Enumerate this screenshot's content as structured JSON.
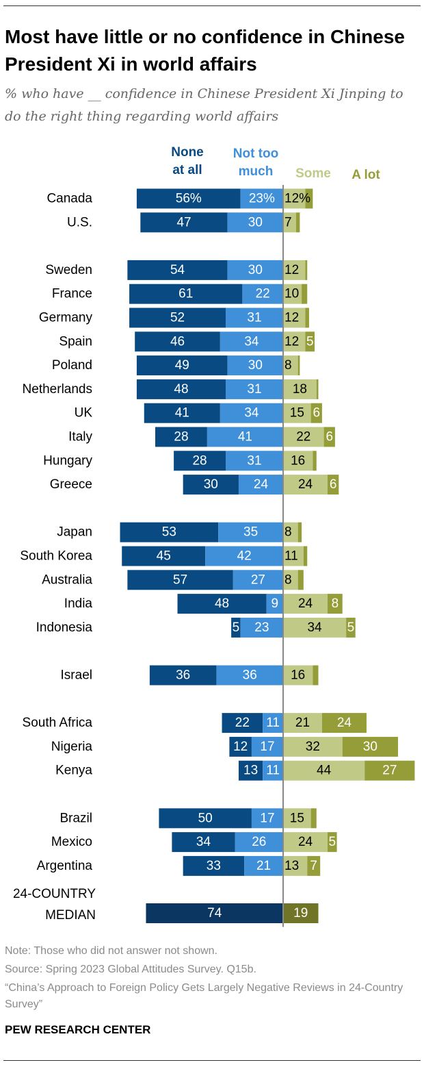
{
  "title": "Most have little or no confidence in Chinese President Xi in world affairs",
  "subtitle": "% who have __ confidence in Chinese President Xi Jinping to do the right thing regarding world affairs",
  "colors": {
    "none": "#0a4a82",
    "not_too_much": "#3f8fd9",
    "some": "#c1c987",
    "a_lot": "#949d37",
    "median_none": "#0b3661",
    "median_a_lot": "#6f7427",
    "axis": "#888888"
  },
  "chart_data": {
    "type": "bar",
    "orientation": "horizontal-diverging",
    "series_names": [
      "None at all",
      "Not too much",
      "Some",
      "A lot"
    ],
    "groups": [
      [
        {
          "country": "Canada",
          "none": "56%",
          "not_too_much": "23%",
          "some": "12%",
          "a_lot": 4,
          "a_lot_label": ""
        },
        {
          "country": "U.S.",
          "none": 47,
          "not_too_much": 30,
          "some": 7,
          "a_lot": 2,
          "a_lot_label": ""
        }
      ],
      [
        {
          "country": "Sweden",
          "none": 54,
          "not_too_much": 30,
          "some": 12,
          "a_lot": 1,
          "a_lot_label": ""
        },
        {
          "country": "France",
          "none": 61,
          "not_too_much": 22,
          "some": 10,
          "a_lot": 3,
          "a_lot_label": ""
        },
        {
          "country": "Germany",
          "none": 52,
          "not_too_much": 31,
          "some": 12,
          "a_lot": 2,
          "a_lot_label": ""
        },
        {
          "country": "Spain",
          "none": 46,
          "not_too_much": 34,
          "some": 12,
          "a_lot": 5,
          "a_lot_label": "5"
        },
        {
          "country": "Poland",
          "none": 49,
          "not_too_much": 30,
          "some": 8,
          "a_lot": 1,
          "a_lot_label": ""
        },
        {
          "country": "Netherlands",
          "none": 48,
          "not_too_much": 31,
          "some": 18,
          "a_lot": 1,
          "a_lot_label": ""
        },
        {
          "country": "UK",
          "none": 41,
          "not_too_much": 34,
          "some": 15,
          "a_lot": 6,
          "a_lot_label": "6"
        },
        {
          "country": "Italy",
          "none": 28,
          "not_too_much": 41,
          "some": 22,
          "a_lot": 6,
          "a_lot_label": "6"
        },
        {
          "country": "Hungary",
          "none": 28,
          "not_too_much": 31,
          "some": 16,
          "a_lot": 2,
          "a_lot_label": ""
        },
        {
          "country": "Greece",
          "none": 30,
          "not_too_much": 24,
          "some": 24,
          "a_lot": 6,
          "a_lot_label": "6"
        }
      ],
      [
        {
          "country": "Japan",
          "none": 53,
          "not_too_much": 35,
          "some": 8,
          "a_lot": 2,
          "a_lot_label": ""
        },
        {
          "country": "South Korea",
          "none": 45,
          "not_too_much": 42,
          "some": 11,
          "a_lot": 2,
          "a_lot_label": ""
        },
        {
          "country": "Australia",
          "none": 57,
          "not_too_much": 27,
          "some": 8,
          "a_lot": 3,
          "a_lot_label": ""
        },
        {
          "country": "India",
          "none": 48,
          "not_too_much": 9,
          "some": 24,
          "a_lot": 8,
          "a_lot_label": "8"
        },
        {
          "country": "Indonesia",
          "none": 5,
          "not_too_much": 23,
          "some": 34,
          "a_lot": 5,
          "a_lot_label": "5"
        }
      ],
      [
        {
          "country": "Israel",
          "none": 36,
          "not_too_much": 36,
          "some": 16,
          "a_lot": 3,
          "a_lot_label": ""
        }
      ],
      [
        {
          "country": "South Africa",
          "none": 22,
          "not_too_much": 11,
          "some": 21,
          "a_lot": 24,
          "a_lot_label": "24"
        },
        {
          "country": "Nigeria",
          "none": 12,
          "not_too_much": 17,
          "some": 32,
          "a_lot": 30,
          "a_lot_label": "30"
        },
        {
          "country": "Kenya",
          "none": 13,
          "not_too_much": 11,
          "some": 44,
          "a_lot": 27,
          "a_lot_label": "27"
        }
      ],
      [
        {
          "country": "Brazil",
          "none": 50,
          "not_too_much": 17,
          "some": 15,
          "a_lot": 3,
          "a_lot_label": ""
        },
        {
          "country": "Mexico",
          "none": 34,
          "not_too_much": 26,
          "some": 24,
          "a_lot": 5,
          "a_lot_label": "5"
        },
        {
          "country": "Argentina",
          "none": 33,
          "not_too_much": 21,
          "some": 13,
          "a_lot": 7,
          "a_lot_label": "7"
        }
      ]
    ],
    "median": {
      "label_line1": "24-COUNTRY",
      "label_line2": "MEDIAN",
      "none_plus_not_too_much": 74,
      "some_plus_a_lot": 19
    }
  },
  "headers": {
    "none_1": "None",
    "none_2": "at all",
    "ntm_1": "Not too",
    "ntm_2": "much",
    "some": "Some",
    "a_lot": "A lot"
  },
  "notes": {
    "note": "Note: Those who did not answer not shown.",
    "source": "Source: Spring 2023 Global Attitudes Survey. Q15b.",
    "report": "“China’s Approach to Foreign Policy Gets Largely Negative Reviews in 24-Country Survey”"
  },
  "brand": "PEW RESEARCH CENTER"
}
